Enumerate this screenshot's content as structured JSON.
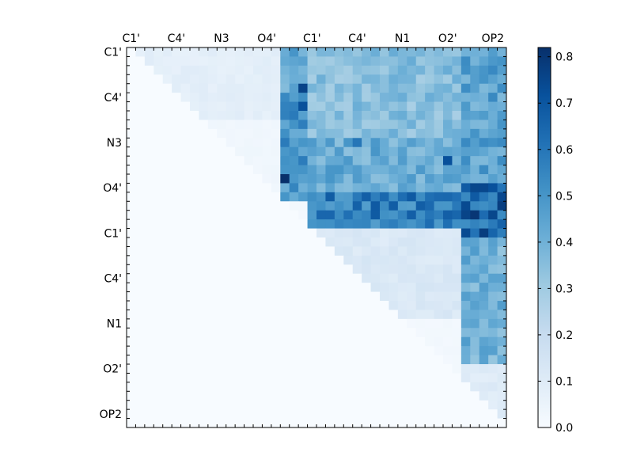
{
  "chart_data": {
    "type": "heatmap",
    "atom_count": 42,
    "row_tick_labels": [
      "C1'",
      "C4'",
      "N3",
      "O4'",
      "C1'",
      "C4'",
      "N1",
      "O2'",
      "OP2"
    ],
    "col_tick_labels": [
      "C1'",
      "C4'",
      "N3",
      "O4'",
      "C1'",
      "C4'",
      "N1",
      "O2'",
      "OP2"
    ],
    "tick_index_step": 5,
    "x_axis_position": "top",
    "colorbar": {
      "vmin": 0.0,
      "vmax": 0.82,
      "tick_values": [
        0.0,
        0.1,
        0.2,
        0.3,
        0.4,
        0.5,
        0.6,
        0.7,
        0.8
      ],
      "tick_labels": [
        "0.0",
        "0.1",
        "0.2",
        "0.3",
        "0.4",
        "0.5",
        "0.6",
        "0.7",
        "0.8"
      ],
      "colormap": "Blues",
      "placement": "right"
    },
    "upper_triangle_only": true,
    "value_bands": {
      "cols_0_16": {
        "rows_0_7": 0.08,
        "rows_8_15": 0.03
      },
      "cols_17_20": {
        "rows_0_5": 0.45,
        "rows_6_16": 0.5
      },
      "cols_20_41": {
        "rows_0_9": 0.35,
        "rows_10_15": 0.42,
        "rows_16_19": 0.58,
        "rows_20_29": 0.12,
        "rows_30_41": 0.02
      },
      "cols_37_41": {
        "rows_0_14": 0.45,
        "rows_15_20": 0.65,
        "rows_21_34": 0.4,
        "rows_35_41": 0.1
      }
    },
    "peak_cells": [
      {
        "row": 4,
        "col": 19,
        "value": 0.76
      },
      {
        "row": 6,
        "col": 19,
        "value": 0.72
      },
      {
        "row": 14,
        "col": 17,
        "value": 0.82
      },
      {
        "row": 12,
        "col": 35,
        "value": 0.72
      },
      {
        "row": 18,
        "col": 38,
        "value": 0.8
      },
      {
        "row": 18,
        "col": 40,
        "value": 0.75
      },
      {
        "row": 17,
        "col": 29,
        "value": 0.68
      },
      {
        "row": 10,
        "col": 25,
        "value": 0.6
      }
    ]
  },
  "colors": {
    "background": "#ffffff",
    "frame": "#000000",
    "cmap_low": "#f7fbff",
    "cmap_high": "#08306b"
  }
}
